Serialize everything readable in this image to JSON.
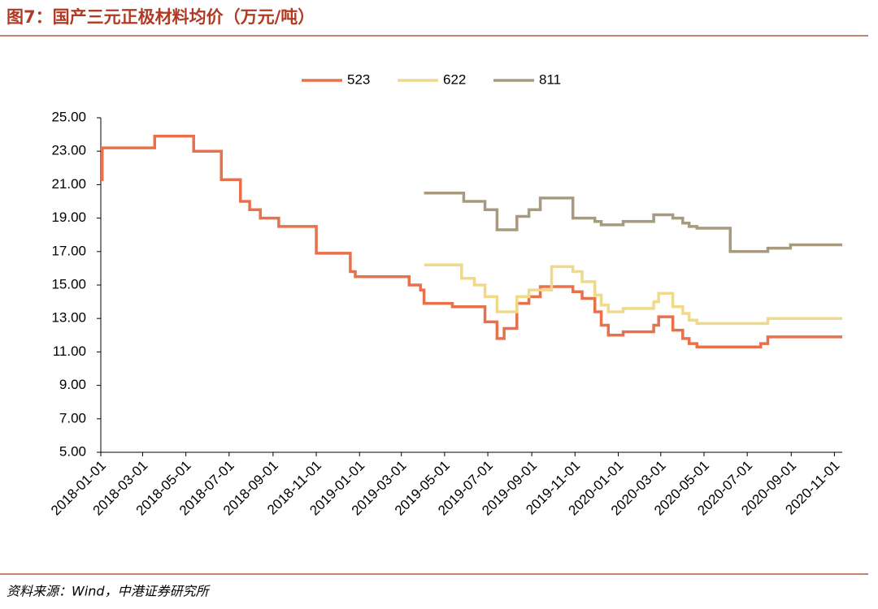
{
  "title": "图7：国产三元正极材料均价（万元/吨）",
  "source": "资料来源：Wind，中港证券研究所",
  "chart_data": {
    "type": "line",
    "step": true,
    "legend": "top",
    "x": [
      "2018-01-01",
      "2018-01-03",
      "2018-03-18",
      "2018-05-12",
      "2018-06-20",
      "2018-07-17",
      "2018-07-30",
      "2018-08-14",
      "2018-09-09",
      "2018-11-01",
      "2018-12-19",
      "2018-12-26",
      "2019-03-12",
      "2019-03-28",
      "2019-04-02",
      "2019-05-12",
      "2019-05-25",
      "2019-05-28",
      "2019-06-12",
      "2019-06-27",
      "2019-07-14",
      "2019-07-24",
      "2019-08-11",
      "2019-08-28",
      "2019-09-13",
      "2019-09-29",
      "2019-10-29",
      "2019-11-11",
      "2019-11-29",
      "2019-12-08",
      "2019-12-18",
      "2020-01-08",
      "2020-02-20",
      "2020-02-27",
      "2020-03-18",
      "2020-04-01",
      "2020-04-10",
      "2020-04-21",
      "2020-06-07",
      "2020-07-20",
      "2020-07-30",
      "2020-08-31",
      "2020-11-12"
    ],
    "series": [
      {
        "name": "523",
        "color": "#e8704a",
        "values": [
          21.3,
          23.2,
          23.9,
          23.0,
          21.3,
          20.0,
          19.5,
          19.0,
          18.5,
          16.9,
          15.8,
          15.5,
          15.0,
          14.7,
          13.9,
          13.7,
          13.7,
          13.7,
          13.7,
          12.8,
          11.8,
          12.4,
          13.9,
          14.3,
          14.9,
          14.9,
          14.6,
          14.2,
          13.4,
          12.6,
          12.0,
          12.2,
          12.6,
          13.1,
          12.3,
          11.8,
          11.5,
          11.3,
          11.3,
          11.5,
          11.9,
          11.9,
          11.9
        ]
      },
      {
        "name": "622",
        "color": "#f0d98a",
        "values": [
          null,
          null,
          null,
          null,
          null,
          null,
          null,
          null,
          null,
          null,
          null,
          null,
          null,
          null,
          16.2,
          16.2,
          15.4,
          15.4,
          15.0,
          14.3,
          13.4,
          13.4,
          14.3,
          14.7,
          14.7,
          16.1,
          15.8,
          15.2,
          14.4,
          13.8,
          13.4,
          13.6,
          14.0,
          14.5,
          13.7,
          13.3,
          12.9,
          12.7,
          12.7,
          12.7,
          13.0,
          13.0,
          13.0
        ]
      },
      {
        "name": "811",
        "color": "#a89a7e",
        "values": [
          null,
          null,
          null,
          null,
          null,
          null,
          null,
          null,
          null,
          null,
          null,
          null,
          null,
          null,
          20.5,
          20.5,
          20.5,
          20.0,
          20.0,
          19.5,
          18.3,
          18.3,
          19.1,
          19.5,
          20.2,
          20.2,
          19.0,
          19.0,
          18.8,
          18.6,
          18.6,
          18.8,
          19.2,
          19.2,
          19.0,
          18.7,
          18.5,
          18.4,
          17.0,
          17.0,
          17.2,
          17.4,
          17.4
        ]
      }
    ],
    "xlim": [
      "2018-01-01",
      "2020-11-12"
    ],
    "xticks": [
      "2018-01-01",
      "2018-03-01",
      "2018-05-01",
      "2018-07-01",
      "2018-09-01",
      "2018-11-01",
      "2019-01-01",
      "2019-03-01",
      "2019-05-01",
      "2019-07-01",
      "2019-09-01",
      "2019-11-01",
      "2020-01-01",
      "2020-03-01",
      "2020-05-01",
      "2020-07-01",
      "2020-09-01",
      "2020-11-01"
    ],
    "ylim": [
      5,
      25
    ],
    "yticks": [
      {
        "value": 5,
        "label": "5.00"
      },
      {
        "value": 7,
        "label": "7.00"
      },
      {
        "value": 9,
        "label": "9.00"
      },
      {
        "value": 11,
        "label": "11.00"
      },
      {
        "value": 13,
        "label": "13.00"
      },
      {
        "value": 15,
        "label": "15.00"
      },
      {
        "value": 17,
        "label": "17.00"
      },
      {
        "value": 19,
        "label": "19.00"
      },
      {
        "value": 21,
        "label": "21.00"
      },
      {
        "value": 23,
        "label": "23.00"
      },
      {
        "value": 25,
        "label": "25.00"
      }
    ]
  }
}
